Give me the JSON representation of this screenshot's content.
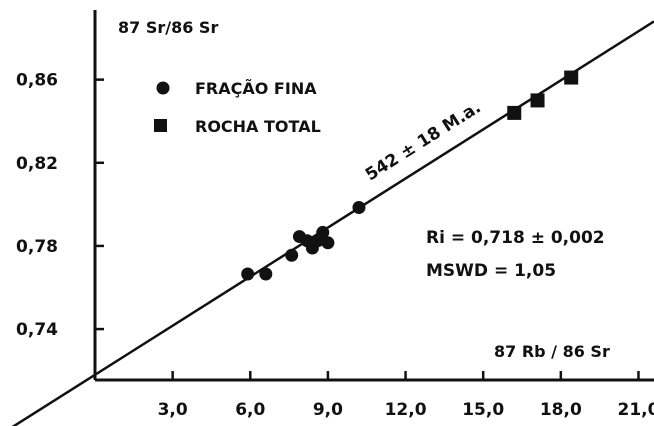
{
  "chart_data": {
    "type": "scatter",
    "title": "",
    "ylabel": "87 Sr/86 Sr",
    "xlabel": "87 Rb / 86 Sr",
    "xlim": [
      0,
      21.6
    ],
    "ylim": [
      0.7155,
      0.8935
    ],
    "x_ticks": [
      3.0,
      6.0,
      9.0,
      12.0,
      15.0,
      18.0,
      21.0
    ],
    "x_tick_labels": [
      "3,0",
      "6,0",
      "9,0",
      "12,0",
      "15,0",
      "18,0",
      "21,0"
    ],
    "y_ticks": [
      0.74,
      0.78,
      0.82,
      0.86
    ],
    "y_tick_labels": [
      "0,74",
      "0,78",
      "0,82",
      "0,86"
    ],
    "grid": false,
    "legend_position": "top-left",
    "series": [
      {
        "name": "FRAÇÃO FINA",
        "marker": "circle",
        "points": [
          [
            5.9,
            0.7665
          ],
          [
            6.6,
            0.7665
          ],
          [
            7.6,
            0.7755
          ],
          [
            7.9,
            0.7845
          ],
          [
            8.2,
            0.7825
          ],
          [
            8.4,
            0.779
          ],
          [
            8.6,
            0.7825
          ],
          [
            8.8,
            0.7865
          ],
          [
            9.0,
            0.7815
          ],
          [
            10.2,
            0.7985
          ]
        ]
      },
      {
        "name": "ROCHA TOTAL",
        "marker": "square",
        "points": [
          [
            16.2,
            0.844
          ],
          [
            17.1,
            0.85
          ],
          [
            18.4,
            0.861
          ]
        ]
      }
    ],
    "isochron": {
      "intercept": 0.718,
      "x_range": [
        0,
        21.6
      ],
      "y_end": 0.888,
      "label": "542 ± 18 M.a."
    },
    "annotations": [
      "Ri = 0,718 ± 0,002",
      "MSWD = 1,05"
    ]
  }
}
